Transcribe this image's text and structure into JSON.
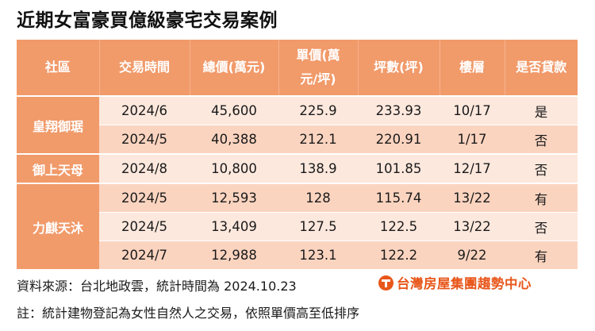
{
  "title": "近期女富豪買億級豪宅交易案例",
  "headers": {
    "community": "社區",
    "date": "交易時間",
    "total_price": "總價(萬元)",
    "unit_price_l1": "單價(萬",
    "unit_price_l2": "元/坪)",
    "area": "坪數(坪)",
    "floor": "樓層",
    "loan": "是否貸款"
  },
  "groups": [
    {
      "community": "皇翔御琚",
      "rows": [
        {
          "date": "2024/6",
          "total": "45,600",
          "unit": "225.9",
          "area": "233.93",
          "floor": "10/17",
          "loan": "是"
        },
        {
          "date": "2024/5",
          "total": "40,388",
          "unit": "212.1",
          "area": "220.91",
          "floor": "1/17",
          "loan": "否"
        }
      ]
    },
    {
      "community": "御上天母",
      "rows": [
        {
          "date": "2024/8",
          "total": "10,800",
          "unit": "138.9",
          "area": "101.85",
          "floor": "12/17",
          "loan": "否"
        }
      ]
    },
    {
      "community": "力麒天沐",
      "rows": [
        {
          "date": "2024/5",
          "total": "12,593",
          "unit": "128",
          "area": "115.74",
          "floor": "13/22",
          "loan": "有"
        },
        {
          "date": "2024/5",
          "total": "13,409",
          "unit": "127.5",
          "area": "122.5",
          "floor": "13/22",
          "loan": "否"
        },
        {
          "date": "2024/7",
          "total": "12,988",
          "unit": "123.1",
          "area": "122.2",
          "floor": "9/22",
          "loan": "有"
        }
      ]
    }
  ],
  "footer": {
    "source": "資料來源：台北地政雲，統計時間為 2024.10.23",
    "note": "註：統計建物登記為女性自然人之交易，依照單價高至低排序",
    "brand": "台灣房屋集團趨勢中心"
  },
  "colors": {
    "header_bg": "#f19a6a",
    "row_light": "#fde8dd",
    "row_dark": "#fbd4c0",
    "brand": "#e8561a"
  },
  "icons": {
    "brand_logo": "taiwan-realty-logo-icon"
  }
}
